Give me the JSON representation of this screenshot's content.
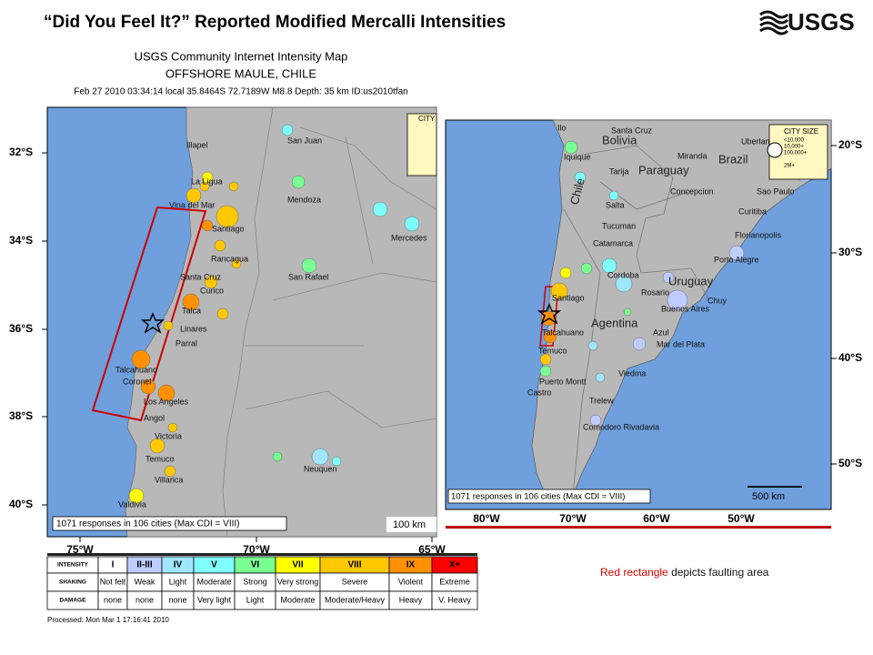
{
  "header": {
    "title": "“Did You Feel It?” Reported Modified Mercalli Intensities",
    "logo": "USGS"
  },
  "main_map": {
    "title_lines": [
      "USGS Community Internet Intensity Map",
      "OFFSHORE MAULE, CHILE",
      "Feb 27 2010 03:34:14 local 35.8464S 72.7189W M8.8 Depth: 35 km ID:us2010tfan"
    ],
    "lat_labels": [
      "32°S",
      "34°S",
      "36°S",
      "38°S",
      "40°S"
    ],
    "lon_labels": [
      "75°W",
      "70°W",
      "65°W"
    ],
    "cities": [
      "Illapel",
      "San Juan",
      "La Ligua",
      "Vina del Mar",
      "Mendoza",
      "Santiago",
      "Mercedes",
      "Rancagua",
      "San Rafael",
      "Santa Cruz",
      "Curico",
      "Talca",
      "Linares",
      "Parral",
      "Talcahuano",
      "Coronel",
      "Los Angeles",
      "Angol",
      "Victoria",
      "Temuco",
      "Villarica",
      "Neuquen",
      "Valdivia"
    ],
    "city_size_title": "CITY",
    "responses": "1071 responses in 106 cities (Max CDI = VIII)",
    "scale": "100 km"
  },
  "legend": {
    "rows": [
      [
        "INTENSITY",
        "I",
        "II-III",
        "IV",
        "V",
        "VI",
        "VII",
        "VIII",
        "IX",
        "X+"
      ],
      [
        "SHAKING",
        "Not felt",
        "Weak",
        "Light",
        "Moderate",
        "Strong",
        "Very strong",
        "Severe",
        "Violent",
        "Extreme"
      ],
      [
        "DAMAGE",
        "none",
        "none",
        "none",
        "Very light",
        "Light",
        "Moderate",
        "Moderate/Heavy",
        "Heavy",
        "V. Heavy"
      ]
    ],
    "processed": "Processed: Mon Mar  1 17:16:41 2010"
  },
  "inset": {
    "lat_labels": [
      "20°S",
      "30°S",
      "40°S",
      "50°S"
    ],
    "lon_labels": [
      "80°W",
      "70°W",
      "60°W",
      "50°W"
    ],
    "countries": [
      "Bolivia",
      "Paraguay",
      "Brazil",
      "Chile",
      "Agentina",
      "Uruguay"
    ],
    "cities": [
      "Ilo",
      "Santa Cruz",
      "Iquique",
      "Tarija",
      "Miranda",
      "Uberlandia",
      "Salta",
      "Concepcion",
      "Tucuman",
      "Catamarca",
      "Curitiba",
      "Sao Paulo",
      "Florianopolis",
      "Porto Alegre",
      "Cordoba",
      "Santiago",
      "Rosario",
      "Buenos Aires",
      "Chuy",
      "Talcahuano",
      "Temuco",
      "Azul",
      "Mar del Plata",
      "Viedma",
      "Puerto Montt",
      "Castro",
      "Trelew",
      "Comodoro Rivadavia"
    ],
    "city_size": [
      "CITY SIZE",
      "<10,000",
      "10,000+",
      "100,000+",
      "2M+"
    ],
    "responses": "1071 responses in 106 cities (Max CDI = VIII)",
    "scale": "500 km"
  },
  "caption": {
    "highlight": "Red rectangle",
    "rest": "depicts faulting area"
  }
}
